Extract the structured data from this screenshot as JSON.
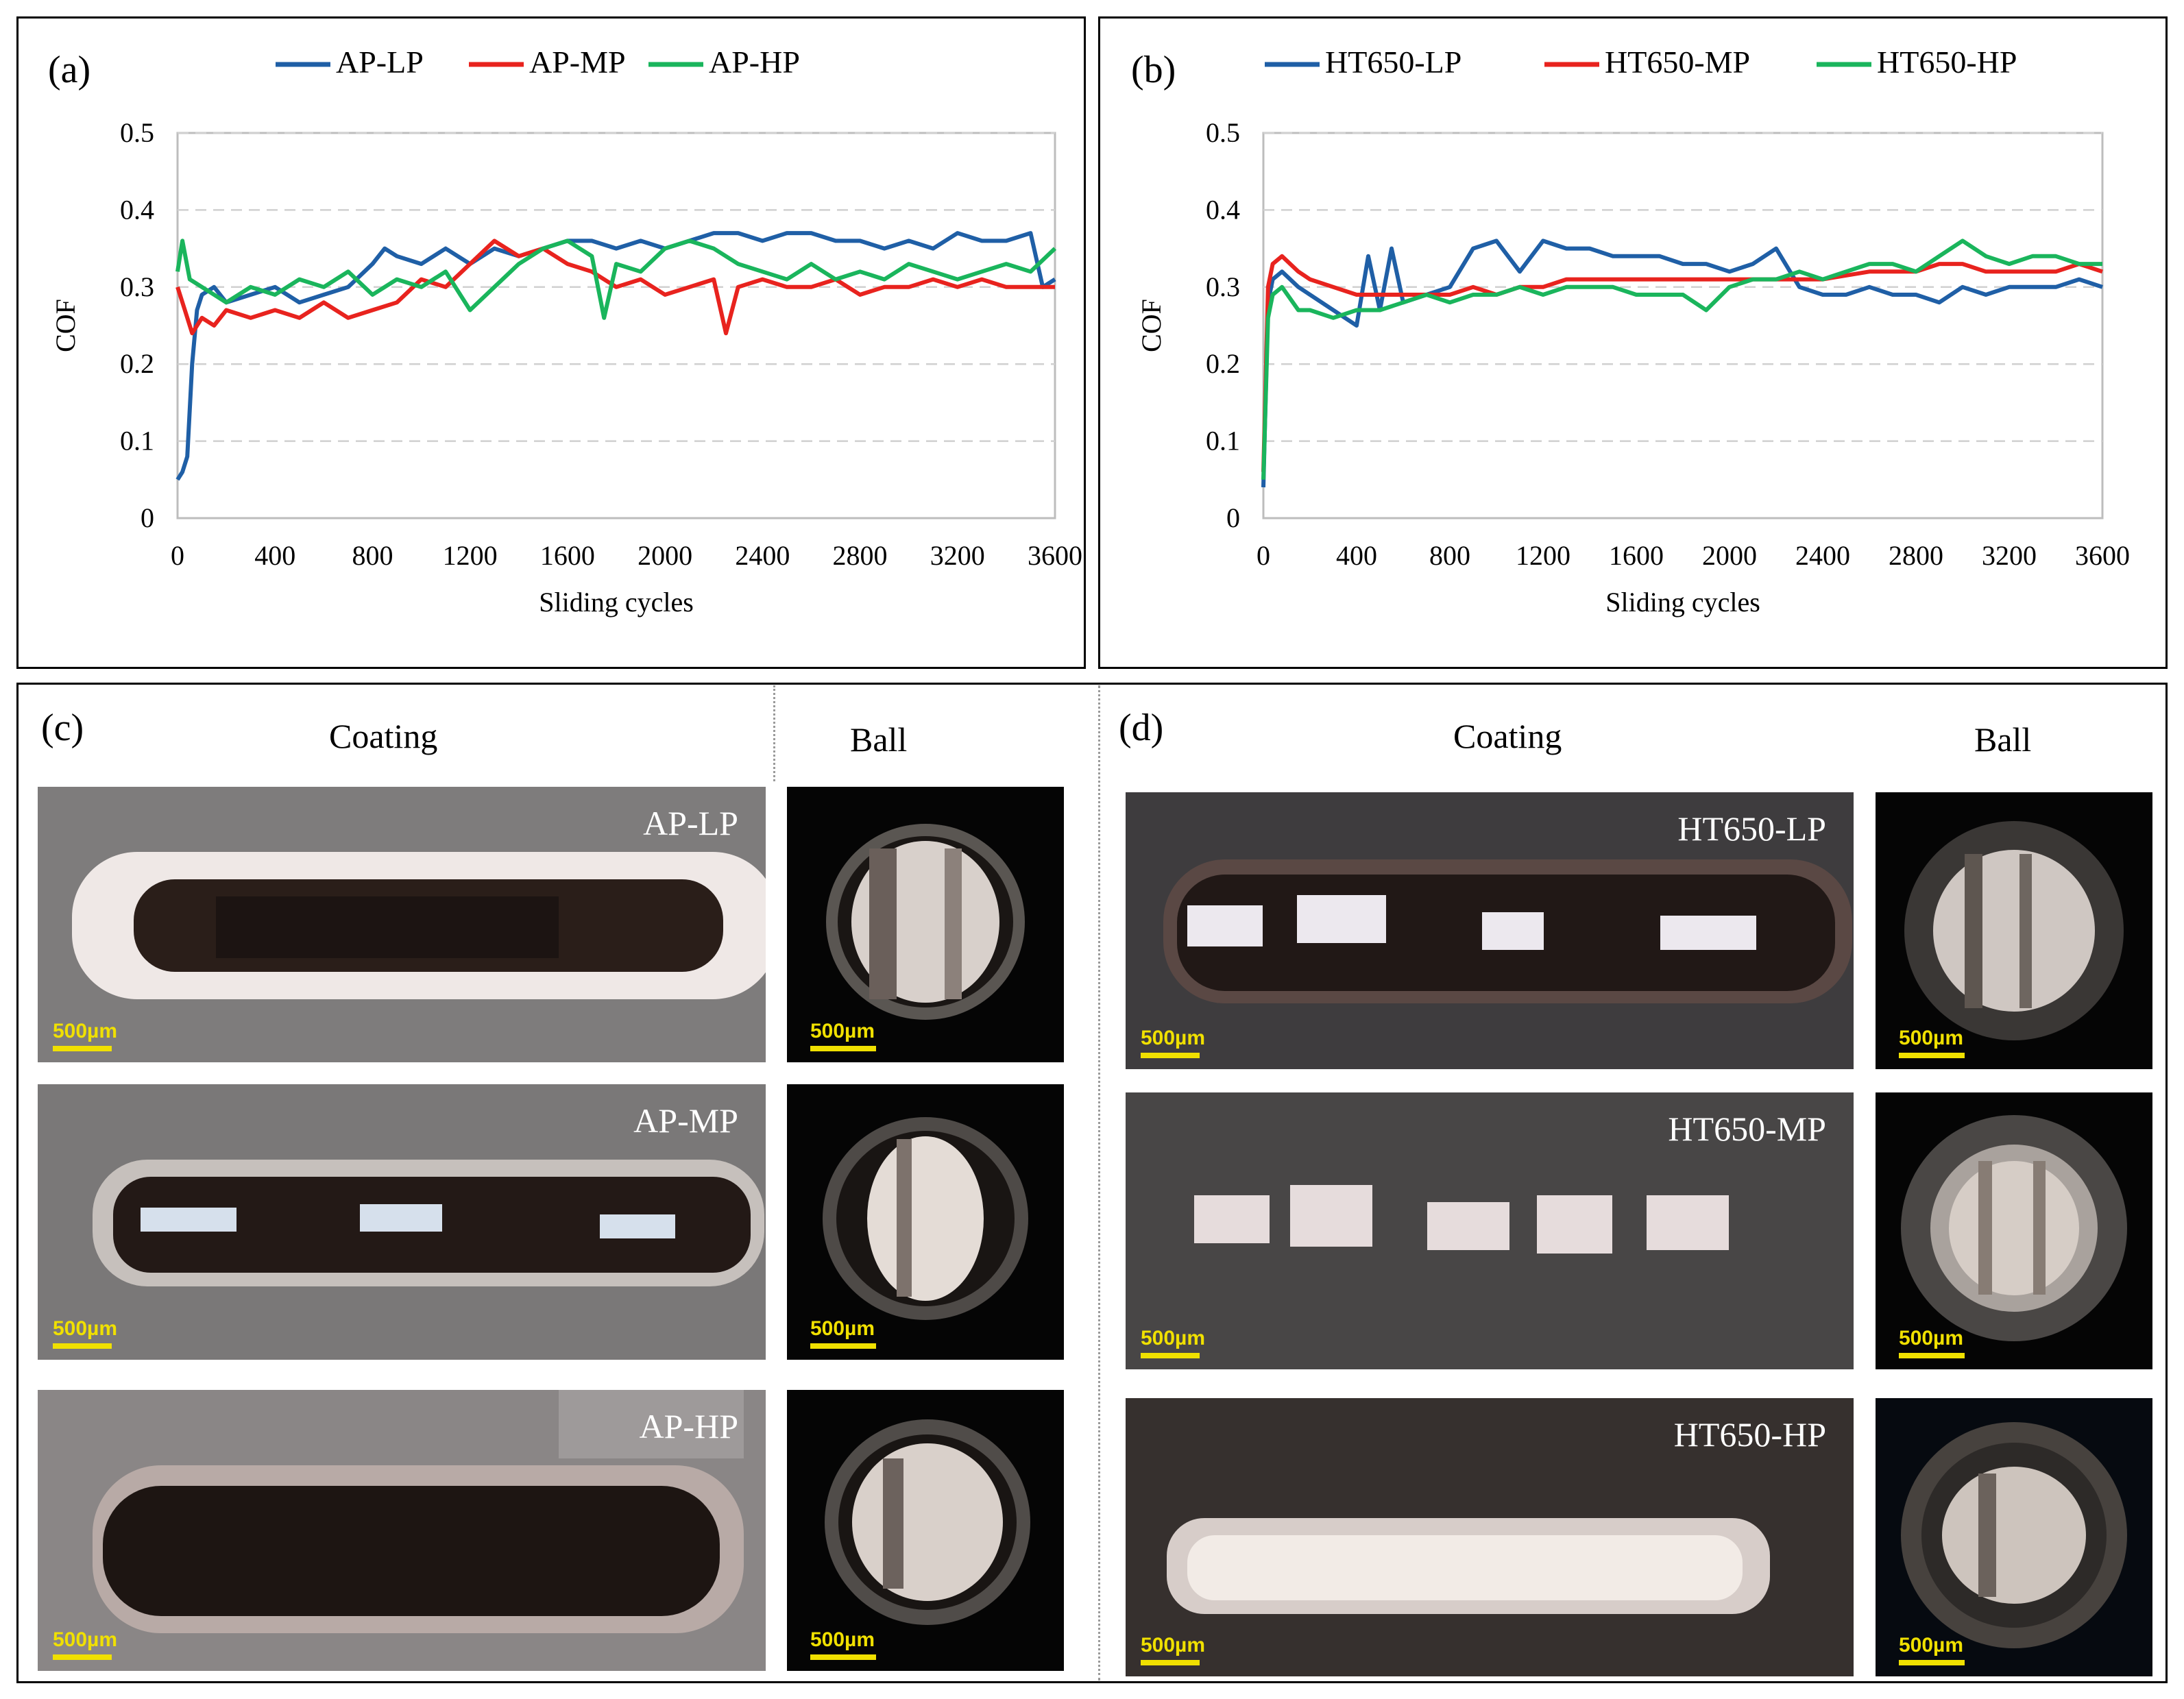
{
  "figure": {
    "panel_c": {
      "label": "(c)",
      "coating_title": "Coating",
      "ball_title": "Ball"
    },
    "panel_d": {
      "label": "(d)",
      "coating_title": "Coating",
      "ball_title": "Ball"
    },
    "micrographs_c": [
      {
        "label": "AP-LP",
        "scale": "500µm",
        "ball_scale": "500µm"
      },
      {
        "label": "AP-MP",
        "scale": "500µm",
        "ball_scale": "500µm"
      },
      {
        "label": "AP-HP",
        "scale": "500µm",
        "ball_scale": "500µm"
      }
    ],
    "micrographs_d": [
      {
        "label": "HT650-LP",
        "scale": "500µm",
        "ball_scale": "500µm"
      },
      {
        "label": "HT650-MP",
        "scale": "500µm",
        "ball_scale": "500µm"
      },
      {
        "label": "HT650-HP",
        "scale": "500µm",
        "ball_scale": "500µm"
      }
    ]
  },
  "chart_data": [
    {
      "id": "a",
      "panel_label": "(a)",
      "type": "line",
      "title": "",
      "xlabel": "Sliding cycles",
      "ylabel": "COF",
      "xlim": [
        0,
        3600
      ],
      "ylim": [
        0,
        0.5
      ],
      "xticks": [
        0,
        400,
        800,
        1200,
        1600,
        2000,
        2400,
        2800,
        3200,
        3600
      ],
      "yticks": [
        0,
        0.1,
        0.2,
        0.3,
        0.4,
        0.5
      ],
      "xtick_labels": [
        "0",
        "400",
        "800",
        "1200",
        "1600",
        "2000",
        "2400",
        "2800",
        "3200",
        "3600"
      ],
      "ytick_labels": [
        "0",
        "0.1",
        "0.2",
        "0.3",
        "0.4",
        "0.5"
      ],
      "grid": "horizontal dashed",
      "legend_position": "top",
      "series": [
        {
          "name": "AP-LP",
          "color": "#1f5fa6",
          "x": [
            0,
            20,
            40,
            60,
            80,
            100,
            150,
            200,
            300,
            400,
            500,
            600,
            700,
            800,
            850,
            900,
            1000,
            1100,
            1200,
            1300,
            1400,
            1500,
            1600,
            1700,
            1800,
            1900,
            2000,
            2100,
            2200,
            2300,
            2400,
            2500,
            2600,
            2700,
            2800,
            2900,
            3000,
            3100,
            3200,
            3300,
            3400,
            3500,
            3550,
            3600
          ],
          "y": [
            0.05,
            0.06,
            0.08,
            0.2,
            0.27,
            0.29,
            0.3,
            0.28,
            0.29,
            0.3,
            0.28,
            0.29,
            0.3,
            0.33,
            0.35,
            0.34,
            0.33,
            0.35,
            0.33,
            0.35,
            0.34,
            0.35,
            0.36,
            0.36,
            0.35,
            0.36,
            0.35,
            0.36,
            0.37,
            0.37,
            0.36,
            0.37,
            0.37,
            0.36,
            0.36,
            0.35,
            0.36,
            0.35,
            0.37,
            0.36,
            0.36,
            0.37,
            0.3,
            0.31
          ]
        },
        {
          "name": "AP-MP",
          "color": "#e8231e",
          "x": [
            0,
            30,
            60,
            100,
            150,
            200,
            300,
            400,
            500,
            600,
            700,
            800,
            900,
            1000,
            1100,
            1200,
            1300,
            1400,
            1500,
            1600,
            1700,
            1800,
            1900,
            2000,
            2100,
            2200,
            2250,
            2300,
            2400,
            2500,
            2600,
            2700,
            2800,
            2900,
            3000,
            3100,
            3200,
            3300,
            3400,
            3500,
            3600
          ],
          "y": [
            0.3,
            0.27,
            0.24,
            0.26,
            0.25,
            0.27,
            0.26,
            0.27,
            0.26,
            0.28,
            0.26,
            0.27,
            0.28,
            0.31,
            0.3,
            0.33,
            0.36,
            0.34,
            0.35,
            0.33,
            0.32,
            0.3,
            0.31,
            0.29,
            0.3,
            0.31,
            0.24,
            0.3,
            0.31,
            0.3,
            0.3,
            0.31,
            0.29,
            0.3,
            0.3,
            0.31,
            0.3,
            0.31,
            0.3,
            0.3,
            0.3
          ]
        },
        {
          "name": "AP-HP",
          "color": "#1ab55c",
          "x": [
            0,
            20,
            50,
            100,
            150,
            200,
            300,
            400,
            500,
            600,
            700,
            800,
            900,
            1000,
            1100,
            1200,
            1300,
            1400,
            1500,
            1600,
            1700,
            1750,
            1800,
            1900,
            2000,
            2100,
            2200,
            2300,
            2400,
            2500,
            2600,
            2700,
            2800,
            2900,
            3000,
            3100,
            3200,
            3300,
            3400,
            3500,
            3600
          ],
          "y": [
            0.32,
            0.36,
            0.31,
            0.3,
            0.29,
            0.28,
            0.3,
            0.29,
            0.31,
            0.3,
            0.32,
            0.29,
            0.31,
            0.3,
            0.32,
            0.27,
            0.3,
            0.33,
            0.35,
            0.36,
            0.34,
            0.26,
            0.33,
            0.32,
            0.35,
            0.36,
            0.35,
            0.33,
            0.32,
            0.31,
            0.33,
            0.31,
            0.32,
            0.31,
            0.33,
            0.32,
            0.31,
            0.32,
            0.33,
            0.32,
            0.35
          ]
        }
      ]
    },
    {
      "id": "b",
      "panel_label": "(b)",
      "type": "line",
      "title": "",
      "xlabel": "Sliding cycles",
      "ylabel": "COF",
      "xlim": [
        0,
        3600
      ],
      "ylim": [
        0,
        0.5
      ],
      "xticks": [
        0,
        400,
        800,
        1200,
        1600,
        2000,
        2400,
        2800,
        3200,
        3600
      ],
      "yticks": [
        0,
        0.1,
        0.2,
        0.3,
        0.4,
        0.5
      ],
      "xtick_labels": [
        "0",
        "400",
        "800",
        "1200",
        "1600",
        "2000",
        "2400",
        "2800",
        "3200",
        "3600"
      ],
      "ytick_labels": [
        "0",
        "0.1",
        "0.2",
        "0.3",
        "0.4",
        "0.5"
      ],
      "grid": "horizontal dashed",
      "legend_position": "top",
      "series": [
        {
          "name": "HT650-LP",
          "color": "#1f5fa6",
          "x": [
            0,
            20,
            40,
            80,
            150,
            200,
            300,
            400,
            450,
            500,
            550,
            600,
            700,
            800,
            900,
            1000,
            1100,
            1200,
            1300,
            1400,
            1500,
            1600,
            1700,
            1800,
            1900,
            2000,
            2100,
            2200,
            2300,
            2400,
            2500,
            2600,
            2700,
            2800,
            2900,
            3000,
            3100,
            3200,
            3300,
            3400,
            3500,
            3600
          ],
          "y": [
            0.04,
            0.28,
            0.31,
            0.32,
            0.3,
            0.29,
            0.27,
            0.25,
            0.34,
            0.27,
            0.35,
            0.28,
            0.29,
            0.3,
            0.35,
            0.36,
            0.32,
            0.36,
            0.35,
            0.35,
            0.34,
            0.34,
            0.34,
            0.33,
            0.33,
            0.32,
            0.33,
            0.35,
            0.3,
            0.29,
            0.29,
            0.3,
            0.29,
            0.29,
            0.28,
            0.3,
            0.29,
            0.3,
            0.3,
            0.3,
            0.31,
            0.3
          ]
        },
        {
          "name": "HT650-MP",
          "color": "#e8231e",
          "x": [
            0,
            20,
            40,
            80,
            150,
            200,
            300,
            400,
            500,
            600,
            700,
            800,
            900,
            1000,
            1100,
            1200,
            1300,
            1400,
            1500,
            1600,
            1700,
            1800,
            1900,
            2000,
            2200,
            2400,
            2600,
            2800,
            2900,
            3000,
            3100,
            3200,
            3300,
            3400,
            3500,
            3600
          ],
          "y": [
            0.06,
            0.3,
            0.33,
            0.34,
            0.32,
            0.31,
            0.3,
            0.29,
            0.29,
            0.29,
            0.29,
            0.29,
            0.3,
            0.29,
            0.3,
            0.3,
            0.31,
            0.31,
            0.31,
            0.31,
            0.31,
            0.31,
            0.31,
            0.31,
            0.31,
            0.31,
            0.32,
            0.32,
            0.33,
            0.33,
            0.32,
            0.32,
            0.32,
            0.32,
            0.33,
            0.32
          ]
        },
        {
          "name": "HT650-HP",
          "color": "#1ab55c",
          "x": [
            0,
            20,
            40,
            80,
            150,
            200,
            300,
            400,
            500,
            600,
            700,
            800,
            900,
            1000,
            1100,
            1200,
            1300,
            1400,
            1500,
            1600,
            1700,
            1800,
            1900,
            2000,
            2100,
            2200,
            2300,
            2400,
            2500,
            2600,
            2700,
            2800,
            2900,
            3000,
            3100,
            3200,
            3300,
            3400,
            3500,
            3600
          ],
          "y": [
            0.05,
            0.26,
            0.29,
            0.3,
            0.27,
            0.27,
            0.26,
            0.27,
            0.27,
            0.28,
            0.29,
            0.28,
            0.29,
            0.29,
            0.3,
            0.29,
            0.3,
            0.3,
            0.3,
            0.29,
            0.29,
            0.29,
            0.27,
            0.3,
            0.31,
            0.31,
            0.32,
            0.31,
            0.32,
            0.33,
            0.33,
            0.32,
            0.34,
            0.36,
            0.34,
            0.33,
            0.34,
            0.34,
            0.33,
            0.33
          ]
        }
      ]
    }
  ]
}
